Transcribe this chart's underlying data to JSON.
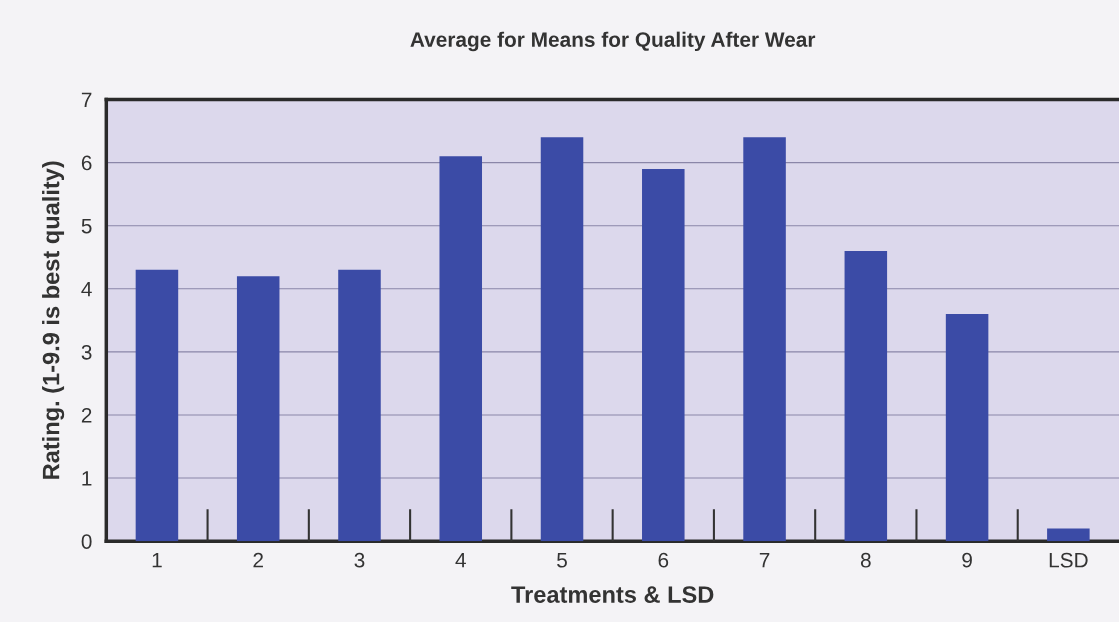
{
  "chart_data": {
    "type": "bar",
    "title": "Average for Means for Quality After Wear",
    "xlabel": "Treatments & LSD",
    "ylabel": "Rating. (1-9.9 is best quality)",
    "categories": [
      "1",
      "2",
      "3",
      "4",
      "5",
      "6",
      "7",
      "8",
      "9",
      "LSD"
    ],
    "values": [
      4.3,
      4.2,
      4.3,
      6.1,
      6.4,
      5.9,
      6.4,
      4.6,
      3.6,
      0.2
    ],
    "color": "#3b4ba6",
    "ylim": [
      0,
      7
    ],
    "yticks": [
      0,
      1,
      2,
      3,
      4,
      5,
      6,
      7
    ],
    "grid": "y",
    "legend": false
  }
}
